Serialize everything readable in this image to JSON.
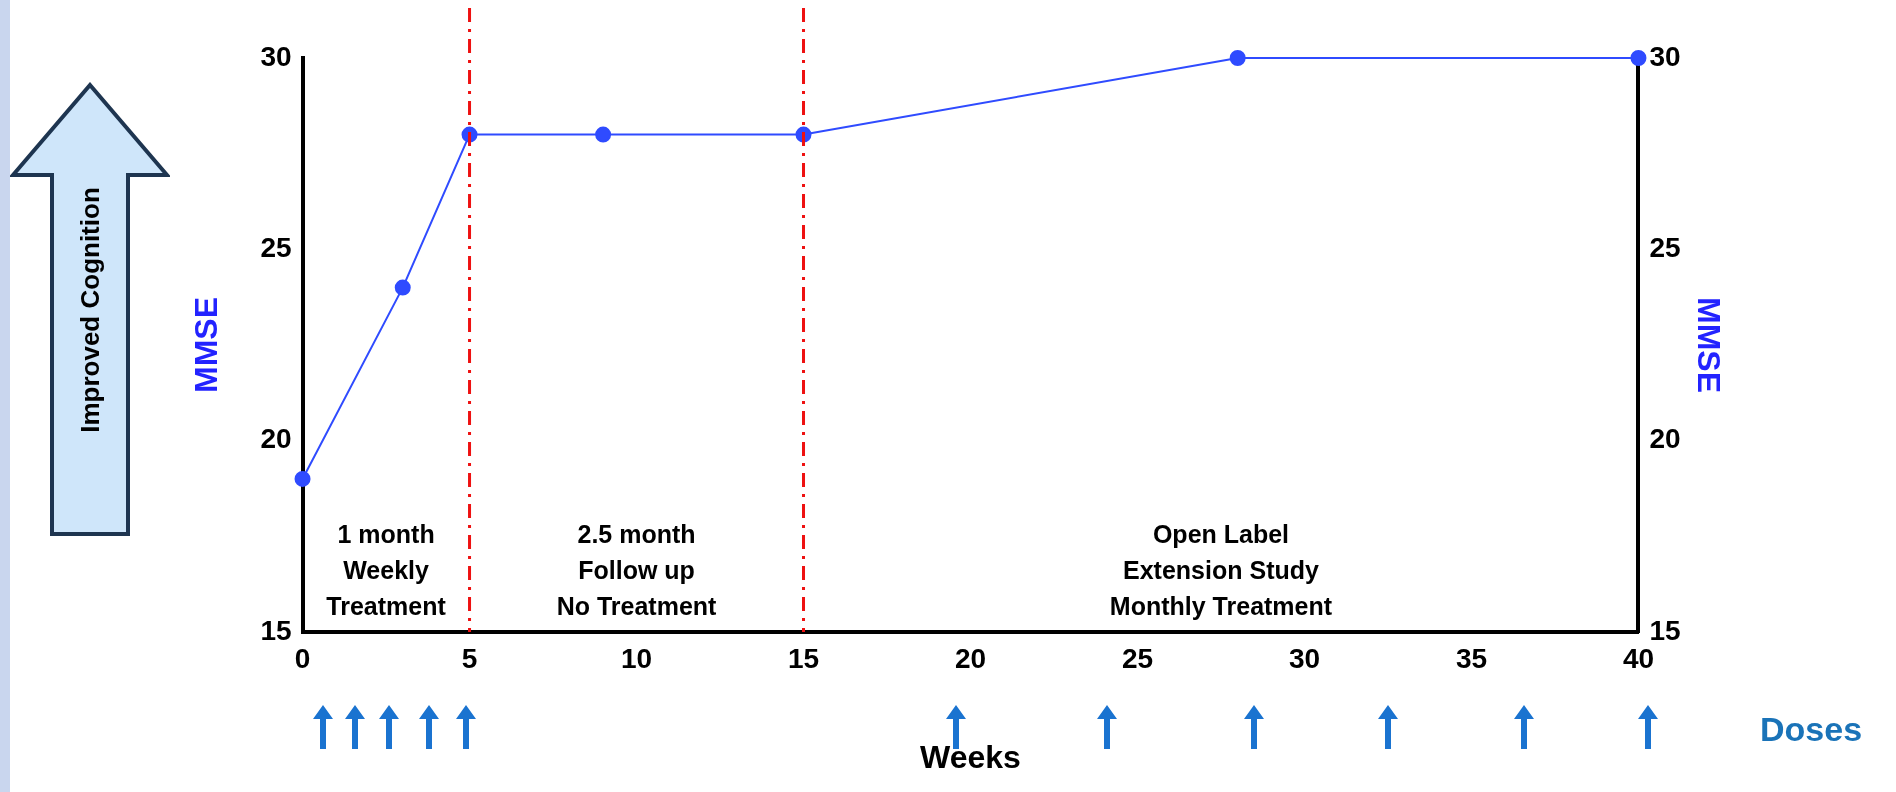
{
  "chart_data": {
    "type": "line",
    "xlabel": "Weeks",
    "ylabel": "MMSE",
    "y2label": "MMSE",
    "x": [
      0,
      3,
      5,
      9,
      15,
      28,
      40
    ],
    "series": [
      {
        "color": "#2f4bff",
        "values": [
          19,
          24,
          28,
          28,
          28,
          30,
          30
        ]
      }
    ],
    "marker": "circle",
    "grid": false,
    "legend": false,
    "xlim": [
      0,
      40
    ],
    "xticks": [
      0,
      5,
      10,
      15,
      20,
      25,
      30,
      35,
      40
    ],
    "ylim": [
      15,
      30
    ],
    "yticks": [
      15,
      20,
      25,
      30
    ],
    "y2lim": [
      15,
      30
    ],
    "y2ticks": [
      15,
      20,
      25,
      30
    ],
    "ref_lines": [
      {
        "axis": "x",
        "value": 5,
        "color": "#ee1111",
        "line_style": "dashed"
      },
      {
        "axis": "x",
        "value": 15,
        "color": "#ee1111",
        "line_style": "dashed"
      }
    ],
    "annotations": [
      "Improved Cognition",
      "Doses",
      "1 month\nWeekly\nTreatment",
      "2.5 month\nFollow up\nNo Treatment",
      "Open Label\nExtension Study\nMonthly Treatment"
    ]
  }
}
